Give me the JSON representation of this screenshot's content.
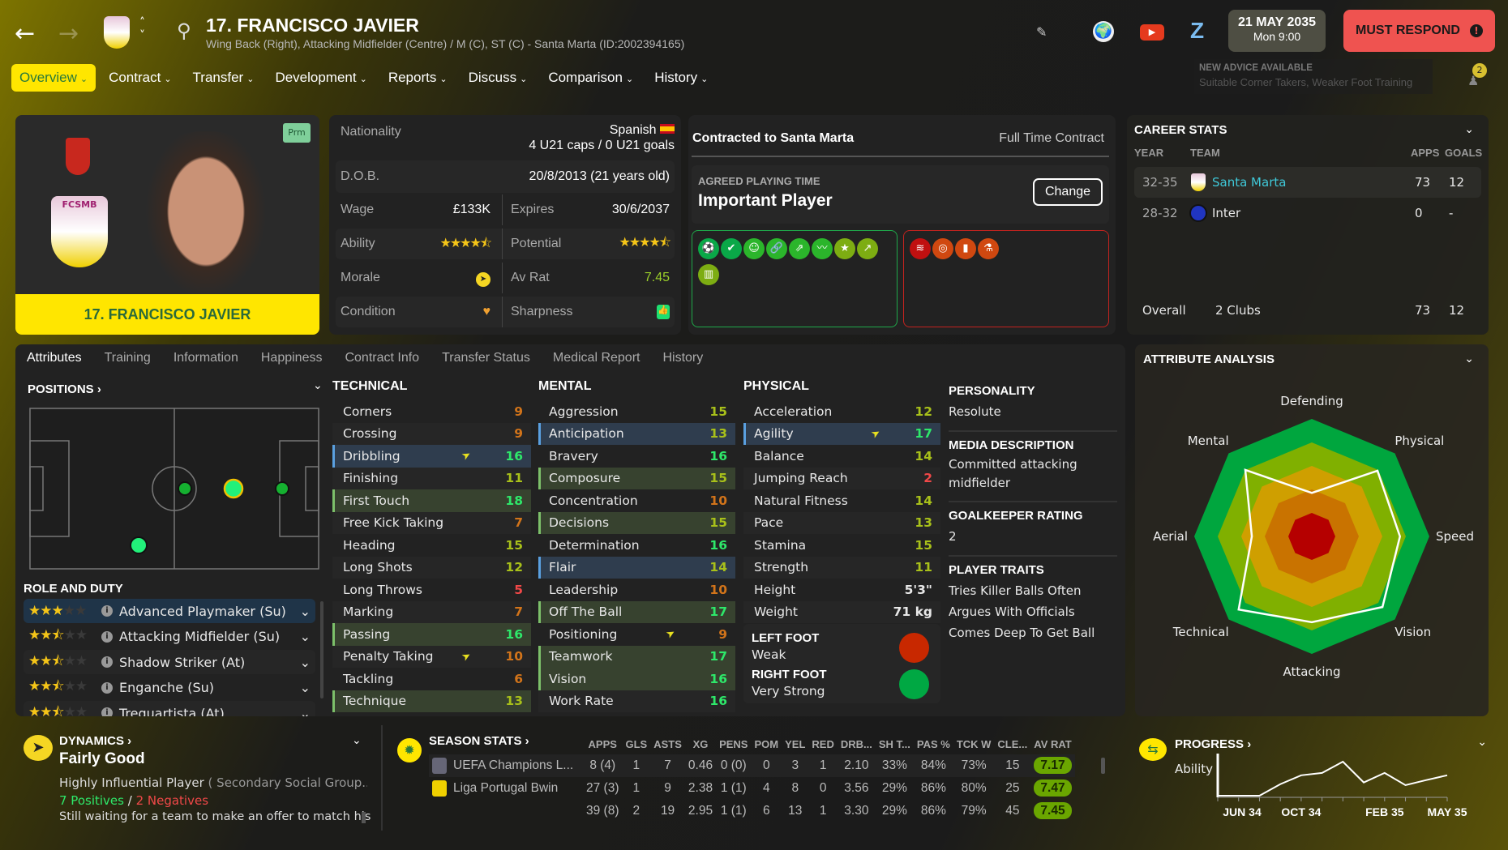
{
  "header": {
    "title": "17. FRANCISCO JAVIER",
    "subtitle": "Wing Back (Right), Attacking Midfielder (Centre) / M (C), ST (C) - Santa Marta (ID:2002394165)",
    "date": "21 MAY 2035",
    "time": "Mon 9:00",
    "must_respond": "MUST RESPOND",
    "advice_title": "NEW ADVICE AVAILABLE",
    "advice_text": "Suitable Corner Takers, Weaker Foot Training",
    "advice_count": "2"
  },
  "nav": [
    {
      "label": "Overview",
      "active": true
    },
    {
      "label": "Contract"
    },
    {
      "label": "Transfer"
    },
    {
      "label": "Development"
    },
    {
      "label": "Reports"
    },
    {
      "label": "Discuss"
    },
    {
      "label": "Comparison"
    },
    {
      "label": "History"
    }
  ],
  "player_card": {
    "name": "17. FRANCISCO JAVIER",
    "badge": "Prm",
    "club_logo_text": "FCSMB"
  },
  "info": {
    "nationality_label": "Nationality",
    "nationality": "Spanish",
    "caps": "4 U21 caps / 0 U21 goals",
    "dob_label": "D.O.B.",
    "dob": "20/8/2013 (21 years old)",
    "wage_label": "Wage",
    "wage": "£133K",
    "expires_label": "Expires",
    "expires": "30/6/2037",
    "ability_label": "Ability",
    "ability_stars": 4.5,
    "potential_label": "Potential",
    "potential_stars": 4.5,
    "morale_label": "Morale",
    "avrat_label": "Av Rat",
    "avrat": "7.45",
    "condition_label": "Condition",
    "sharpness_label": "Sharpness"
  },
  "contract": {
    "title": "Contracted to Santa Marta",
    "type": "Full Time Contract",
    "pt_label": "AGREED PLAYING TIME",
    "pt_value": "Important Player",
    "change": "Change",
    "positive_icons": [
      "pass-icon",
      "dribble-icon",
      "head-icon",
      "link-icon",
      "arrows-icon",
      "trend-icon",
      "star-icon",
      "rising-icon",
      "pitch-icon"
    ],
    "negative_icons": [
      "spring-icon",
      "target-icon",
      "card-icon",
      "flask-icon"
    ]
  },
  "career": {
    "title": "CAREER STATS",
    "cols": [
      "YEAR",
      "TEAM",
      "APPS",
      "GOALS"
    ],
    "rows": [
      {
        "year": "32-35",
        "team": "Santa Marta",
        "apps": "73",
        "goals": "12"
      },
      {
        "year": "28-32",
        "team": "Inter",
        "apps": "0",
        "goals": "-"
      }
    ],
    "overall_label": "Overall",
    "overall_clubs": "2 Clubs",
    "overall_apps": "73",
    "overall_goals": "12"
  },
  "tabs": [
    "Attributes",
    "Training",
    "Information",
    "Happiness",
    "Contract Info",
    "Transfer Status",
    "Medical Report",
    "History"
  ],
  "positions": {
    "title": "POSITIONS",
    "role_title": "ROLE AND DUTY",
    "roles": [
      {
        "name": "Advanced Playmaker (Su)",
        "stars": 3
      },
      {
        "name": "Attacking Midfielder (Su)",
        "stars": 2.5
      },
      {
        "name": "Shadow Striker (At)",
        "stars": 2.5
      },
      {
        "name": "Enganche (Su)",
        "stars": 2.5
      },
      {
        "name": "Trequartista (At)",
        "stars": 2.5
      }
    ]
  },
  "technical": {
    "title": "TECHNICAL",
    "items": [
      [
        "Corners",
        9,
        ""
      ],
      [
        "Crossing",
        9,
        ""
      ],
      [
        "Dribbling",
        16,
        "blue",
        true
      ],
      [
        "Finishing",
        11,
        ""
      ],
      [
        "First Touch",
        18,
        "green"
      ],
      [
        "Free Kick Taking",
        7,
        ""
      ],
      [
        "Heading",
        15,
        ""
      ],
      [
        "Long Shots",
        12,
        ""
      ],
      [
        "Long Throws",
        5,
        ""
      ],
      [
        "Marking",
        7,
        ""
      ],
      [
        "Passing",
        16,
        "green"
      ],
      [
        "Penalty Taking",
        10,
        "",
        true
      ],
      [
        "Tackling",
        6,
        ""
      ],
      [
        "Technique",
        13,
        "green"
      ]
    ]
  },
  "mental": {
    "title": "MENTAL",
    "items": [
      [
        "Aggression",
        15,
        ""
      ],
      [
        "Anticipation",
        13,
        "blue"
      ],
      [
        "Bravery",
        16,
        ""
      ],
      [
        "Composure",
        15,
        "green"
      ],
      [
        "Concentration",
        10,
        ""
      ],
      [
        "Decisions",
        15,
        "green"
      ],
      [
        "Determination",
        16,
        ""
      ],
      [
        "Flair",
        14,
        "blue"
      ],
      [
        "Leadership",
        10,
        ""
      ],
      [
        "Off The Ball",
        17,
        "green"
      ],
      [
        "Positioning",
        9,
        "",
        true
      ],
      [
        "Teamwork",
        17,
        "green"
      ],
      [
        "Vision",
        16,
        "green"
      ],
      [
        "Work Rate",
        16,
        ""
      ]
    ]
  },
  "physical": {
    "title": "PHYSICAL",
    "items": [
      [
        "Acceleration",
        12,
        ""
      ],
      [
        "Agility",
        17,
        "blue",
        true
      ],
      [
        "Balance",
        14,
        ""
      ],
      [
        "Jumping Reach",
        2,
        ""
      ],
      [
        "Natural Fitness",
        14,
        ""
      ],
      [
        "Pace",
        13,
        ""
      ],
      [
        "Stamina",
        15,
        ""
      ],
      [
        "Strength",
        11,
        ""
      ]
    ],
    "height_label": "Height",
    "height": "5'3\"",
    "weight_label": "Weight",
    "weight": "71 kg",
    "left_foot_label": "LEFT FOOT",
    "left_foot": "Weak",
    "right_foot_label": "RIGHT FOOT",
    "right_foot": "Very Strong"
  },
  "personality": {
    "p_title": "PERSONALITY",
    "p_value": "Resolute",
    "m_title": "MEDIA DESCRIPTION",
    "m_value": "Committed attacking midfielder",
    "g_title": "GOALKEEPER RATING",
    "g_value": "2",
    "t_title": "PLAYER TRAITS",
    "traits": [
      "Tries Killer Balls Often",
      "Argues With Officials",
      "Comes Deep To Get Ball"
    ]
  },
  "chart_data": [
    {
      "type": "radar",
      "title": "ATTRIBUTE ANALYSIS",
      "axes": [
        "Defending",
        "Physical",
        "Speed",
        "Vision",
        "Attacking",
        "Technical",
        "Aerial",
        "Mental"
      ],
      "values": [
        0.37,
        0.79,
        0.75,
        0.85,
        0.73,
        0.88,
        0.51,
        0.8
      ],
      "range": [
        0,
        1
      ],
      "band_colors": [
        "#b50000",
        "#c97300",
        "#cf9f00",
        "#80b000",
        "#00a63e"
      ]
    },
    {
      "type": "line",
      "title": "PROGRESS",
      "ylabel": "Ability",
      "x": [
        "JUN 34",
        "JUL 34",
        "AUG 34",
        "SEP 34",
        "OCT 34",
        "NOV 34",
        "DEC 34",
        "JAN 35",
        "FEB 35",
        "MAR 35",
        "APR 35",
        "MAY 35"
      ],
      "tick_labels": [
        "JUN 34",
        "OCT 34",
        "FEB 35",
        "MAY 35"
      ],
      "values": [
        0,
        0,
        0,
        34,
        60,
        67,
        100,
        39,
        67,
        31,
        46,
        60
      ]
    }
  ],
  "dynamics": {
    "title": "DYNAMICS",
    "value": "Fairly Good",
    "status": "Highly Influential Player",
    "group": "( Secondary Social Group...",
    "positives": "7 Positives",
    "sep": "/",
    "negatives": "2 Negatives",
    "note": "Still waiting for a team to make an offer to match his"
  },
  "season": {
    "title": "SEASON STATS",
    "cols": [
      "APPS",
      "GLS",
      "ASTS",
      "XG",
      "PENS",
      "POM",
      "YEL",
      "RED",
      "DRB...",
      "SH T...",
      "PAS %",
      "TCK W",
      "CLE...",
      "AV RAT"
    ],
    "rows": [
      {
        "comp": "UEFA Champions L...",
        "v": [
          "8 (4)",
          "1",
          "7",
          "0.46",
          "0 (0)",
          "0",
          "3",
          "1",
          "2.10",
          "33%",
          "84%",
          "73%",
          "15",
          "7.17"
        ]
      },
      {
        "comp": "Liga Portugal Bwin",
        "v": [
          "27 (3)",
          "1",
          "9",
          "2.38",
          "1 (1)",
          "4",
          "8",
          "0",
          "3.56",
          "29%",
          "86%",
          "80%",
          "25",
          "7.47"
        ]
      },
      {
        "comp": "",
        "v": [
          "39 (8)",
          "2",
          "19",
          "2.95",
          "1 (1)",
          "6",
          "13",
          "1",
          "3.30",
          "29%",
          "86%",
          "79%",
          "45",
          "7.45"
        ]
      }
    ]
  },
  "colors": {
    "accent": "#ffe600",
    "must_respond": "#ef5350",
    "link": "#3fc8d8"
  }
}
